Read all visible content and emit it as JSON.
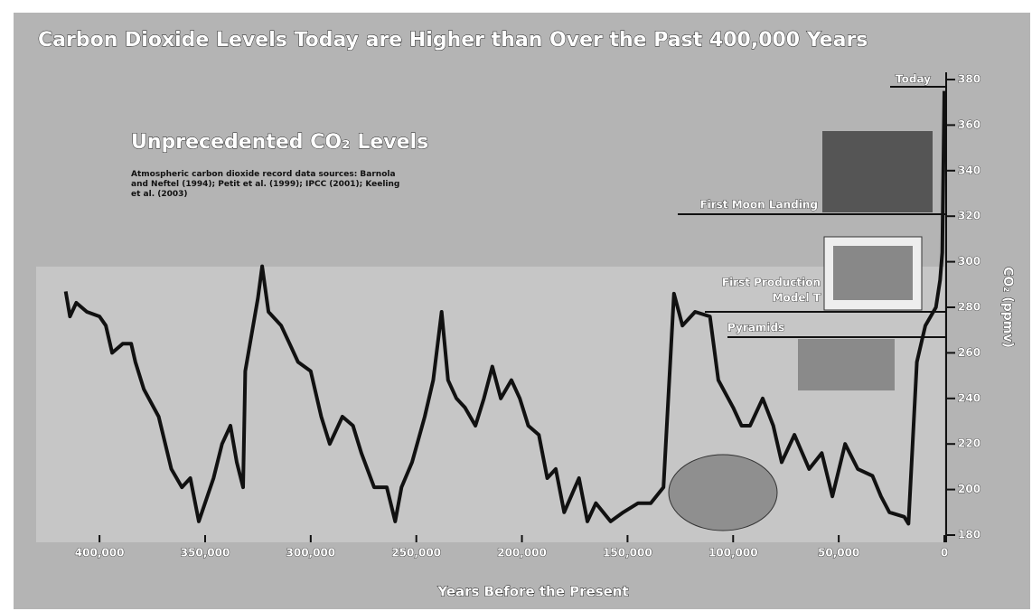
{
  "chart_data": {
    "type": "line",
    "title": "Carbon Dioxide Levels Today are Higher than Over the Past 400,000 Years",
    "subtitle": "Unprecedented CO₂ Levels",
    "note": "Atmospheric carbon dioxide record data sources: Barnola and Neftel (1994); Petit et al. (1999); IPCC (2001); Keeling et al. (2003)",
    "x_label": "Years Before the Present",
    "y_label": "CO₂ (ppmv)",
    "annotations": [
      "Today",
      "First Moon Landing",
      "First Production",
      "Model T",
      "Pyramids"
    ],
    "x": [
      416000,
      414000,
      411000,
      406000,
      400000,
      397000,
      394000,
      389000,
      385000,
      383000,
      379000,
      372000,
      366000,
      361000,
      357000,
      353000,
      346000,
      342000,
      338000,
      335000,
      332000,
      331000,
      328000,
      325000,
      323000,
      320000,
      314000,
      310000,
      306000,
      300000,
      295000,
      291000,
      285000,
      280000,
      276000,
      270000,
      264000,
      260000,
      257000,
      252000,
      246000,
      242000,
      238000,
      235000,
      231000,
      227000,
      222000,
      218000,
      214000,
      210000,
      205000,
      201000,
      197000,
      192000,
      188000,
      184000,
      180000,
      173000,
      169000,
      165000,
      158000,
      152000,
      145000,
      139000,
      133000,
      128000,
      124000,
      118000,
      111000,
      107000,
      100000,
      96000,
      92000,
      86000,
      81000,
      77000,
      71000,
      64000,
      58000,
      53000,
      47000,
      41000,
      34000,
      30000,
      26000,
      19000,
      17000,
      13000,
      9000,
      4000,
      2000,
      1000,
      0
    ],
    "values": [
      287,
      276,
      282,
      278,
      276,
      272,
      260,
      264,
      264,
      256,
      244,
      232,
      209,
      201,
      205,
      186,
      205,
      220,
      228,
      212,
      201,
      252,
      268,
      284,
      298,
      278,
      272,
      264,
      256,
      252,
      232,
      220,
      232,
      228,
      216,
      201,
      201,
      186,
      201,
      212,
      232,
      248,
      278,
      248,
      240,
      236,
      228,
      240,
      254,
      240,
      248,
      240,
      228,
      224,
      205,
      209,
      190,
      205,
      186,
      194,
      186,
      190,
      194,
      194,
      201,
      286,
      272,
      278,
      276,
      248,
      236,
      228,
      228,
      240,
      228,
      212,
      224,
      209,
      216,
      197,
      220,
      209,
      206,
      197,
      190,
      188,
      185,
      256,
      272,
      280,
      292,
      304,
      375
    ],
    "color": "#111111",
    "xlim": [
      430000,
      0
    ],
    "ylim": [
      180,
      380
    ],
    "xticks": [
      {
        "value": 400000,
        "label": "400,000"
      },
      {
        "value": 350000,
        "label": "350,000"
      },
      {
        "value": 300000,
        "label": "300,000"
      },
      {
        "value": 250000,
        "label": "250,000"
      },
      {
        "value": 200000,
        "label": "200,000"
      },
      {
        "value": 150000,
        "label": "150,000"
      },
      {
        "value": 100000,
        "label": "100,000"
      },
      {
        "value": 50000,
        "label": "50,000"
      },
      0
    ],
    "yticks": [
      180,
      200,
      220,
      240,
      260,
      280,
      300,
      320,
      340,
      360,
      380
    ]
  }
}
